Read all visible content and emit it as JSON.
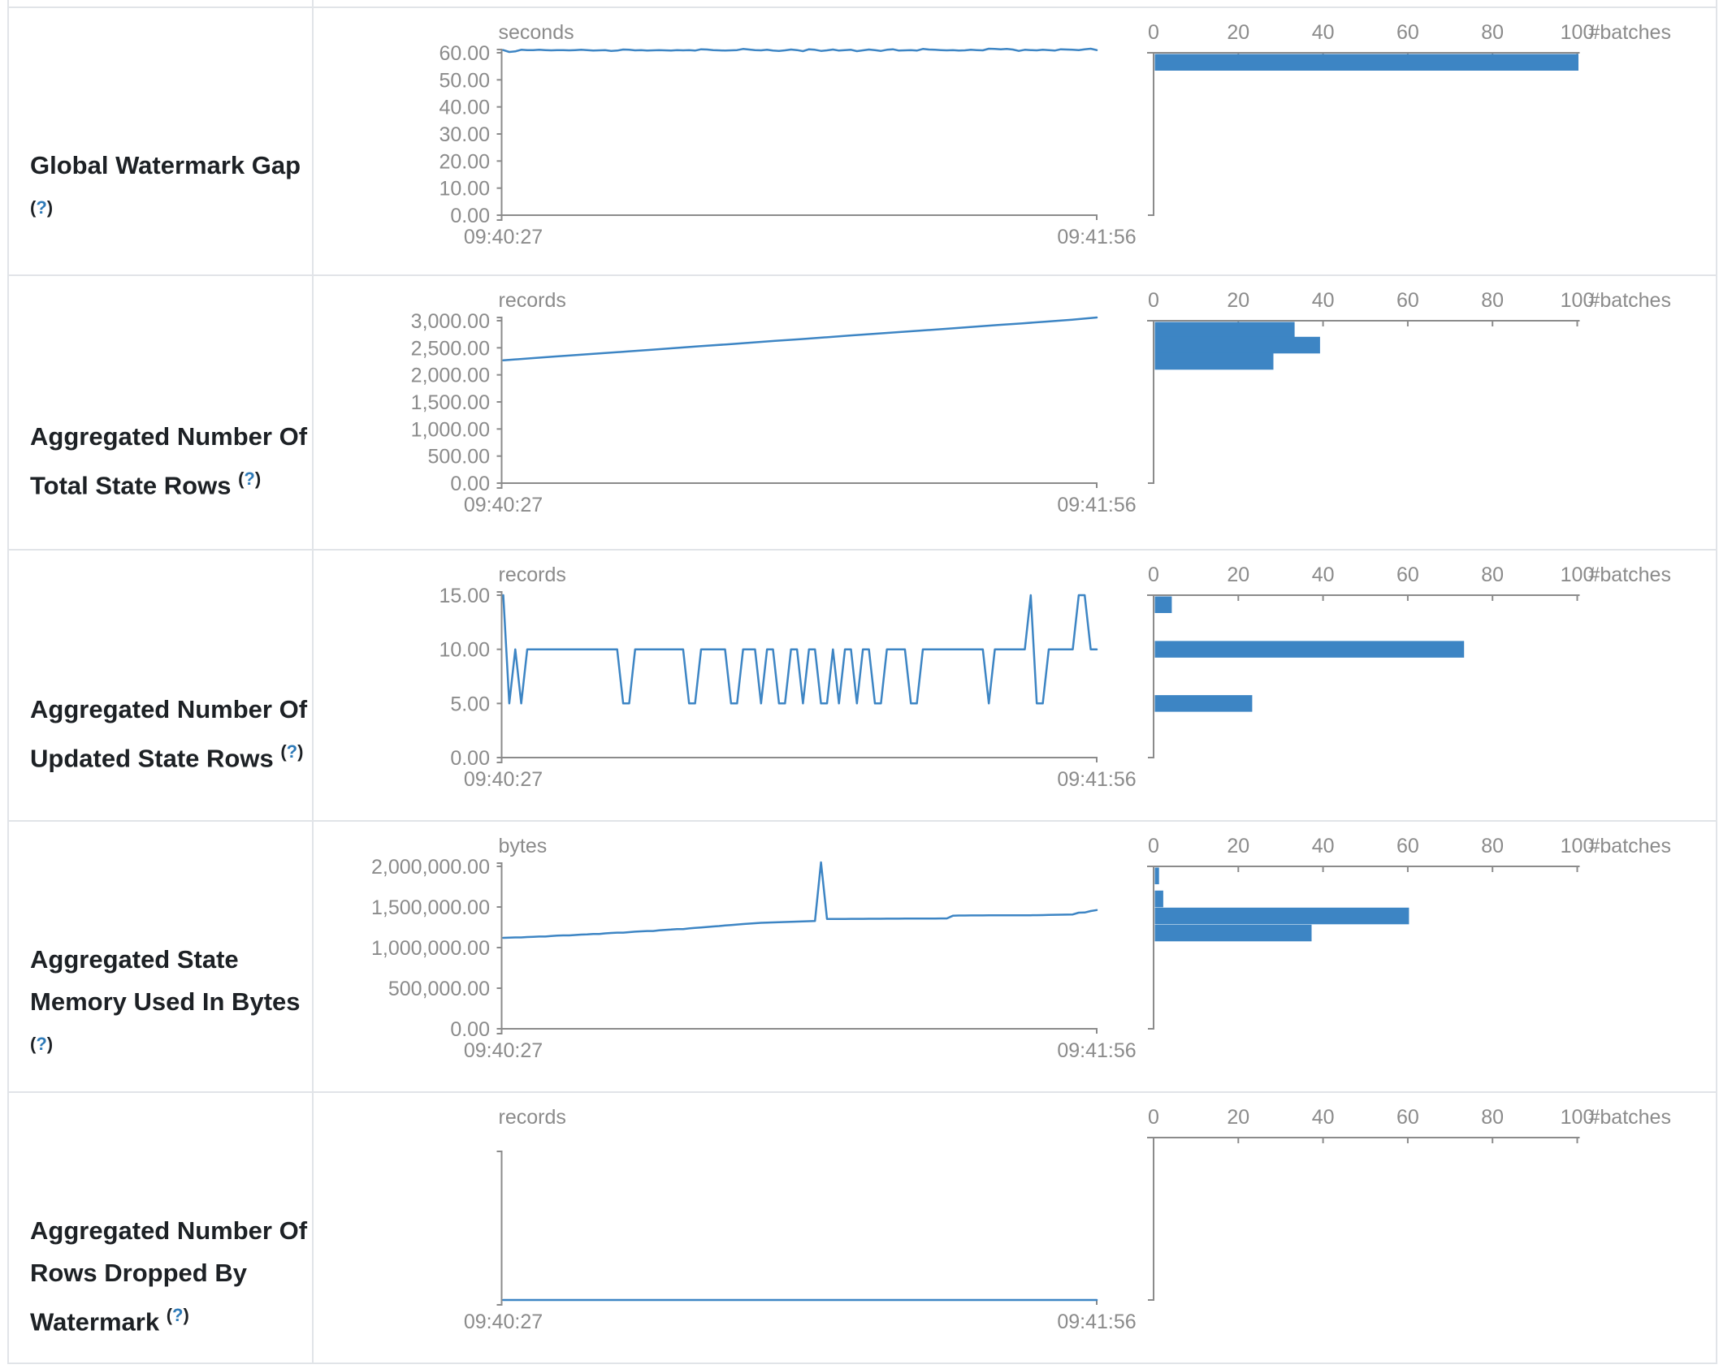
{
  "page": {
    "accent_blue": "#3d85c4",
    "axis_gray": "#8b8b8b",
    "border_color": "#e1e4e8",
    "label_color": "#1d2125",
    "help_color": "#2e7ab8",
    "help_label": "(?)"
  },
  "time_axis": {
    "start": "09:40:27",
    "end": "09:41:56"
  },
  "batch_axis": {
    "tick_labels": [
      "0",
      "20",
      "40",
      "60",
      "80",
      "100"
    ],
    "tick_values": [
      0,
      20,
      40,
      60,
      80,
      100
    ],
    "max": 100,
    "unit": "#batches"
  },
  "rows": [
    {
      "id": "global-watermark-gap",
      "label_lines": [
        "Global Watermark Gap",
        "(?)"
      ],
      "unit": "seconds",
      "y_max": 60,
      "y_ticks": [
        {
          "label": "60.00",
          "v": 60
        },
        {
          "label": "50.00",
          "v": 50
        },
        {
          "label": "40.00",
          "v": 40
        },
        {
          "label": "30.00",
          "v": 30
        },
        {
          "label": "20.00",
          "v": 20
        },
        {
          "label": "10.00",
          "v": 10
        },
        {
          "label": "0.00",
          "v": 0
        }
      ],
      "line": [
        61,
        60.3,
        60.5,
        61.1,
        61,
        61,
        61.1,
        61,
        60.9,
        61,
        61,
        60.9,
        61,
        61.1,
        61,
        60.8,
        60.9,
        61,
        60.7,
        60.8,
        61.2,
        61.1,
        60.9,
        61,
        60.8,
        60.9,
        61,
        60.9,
        60.8,
        61,
        60.9,
        61,
        60.8,
        61.3,
        61.2,
        61,
        60.9,
        60.8,
        60.9,
        61,
        61.4,
        61.2,
        61,
        60.9,
        61.1,
        60.8,
        60.7,
        60.9,
        61.2,
        61,
        60.6,
        61.3,
        61.1,
        60.7,
        60.9,
        61.2,
        60.8,
        61,
        61.1,
        60.6,
        60.9,
        61.2,
        61,
        60.7,
        61.1,
        61.3,
        60.8,
        60.9,
        61,
        60.8,
        61.4,
        61.2,
        61.1,
        61,
        60.9,
        61,
        60.8,
        60.9,
        61.1,
        61,
        60.9,
        61.5,
        61.4,
        61.3,
        61.4,
        61.2,
        60.7,
        61.1,
        61,
        60.9,
        61.1,
        61,
        60.8,
        61.3,
        61.2,
        61.1,
        61,
        61.3,
        61.5,
        61
      ],
      "hist": [
        {
          "v": 60,
          "n": 100
        }
      ]
    },
    {
      "id": "aggregated-total-state-rows",
      "label_lines": [
        "Aggregated Number Of",
        "Total State Rows (?)"
      ],
      "unit": "records",
      "y_max": 3000,
      "y_ticks": [
        {
          "label": "3,000.00",
          "v": 3000
        },
        {
          "label": "2,500.00",
          "v": 2500
        },
        {
          "label": "2,000.00",
          "v": 2000
        },
        {
          "label": "1,500.00",
          "v": 1500
        },
        {
          "label": "1,000.00",
          "v": 1000
        },
        {
          "label": "500.00",
          "v": 500
        },
        {
          "label": "0.00",
          "v": 0
        }
      ],
      "line": [
        2270,
        2302,
        2335,
        2368,
        2400,
        2432,
        2465,
        2498,
        2530,
        2562,
        2595,
        2628,
        2660,
        2692,
        2725,
        2758,
        2790,
        2822,
        2855,
        2888,
        2920,
        2952,
        2985,
        3020,
        3060
      ],
      "hist": [
        {
          "v": 2850,
          "n": 33
        },
        {
          "v": 2550,
          "n": 39
        },
        {
          "v": 2250,
          "n": 28
        }
      ]
    },
    {
      "id": "aggregated-updated-state-rows",
      "label_lines": [
        "Aggregated Number Of",
        "Updated State Rows (?)"
      ],
      "unit": "records",
      "y_max": 15,
      "y_ticks": [
        {
          "label": "15.00",
          "v": 15
        },
        {
          "label": "10.00",
          "v": 10
        },
        {
          "label": "5.00",
          "v": 5
        },
        {
          "label": "0.00",
          "v": 0
        }
      ],
      "line": [
        15,
        5,
        10,
        5,
        10,
        10,
        10,
        10,
        10,
        10,
        10,
        10,
        10,
        10,
        10,
        10,
        10,
        10,
        10,
        10,
        5,
        5,
        10,
        10,
        10,
        10,
        10,
        10,
        10,
        10,
        10,
        5,
        5,
        10,
        10,
        10,
        10,
        10,
        5,
        5,
        10,
        10,
        10,
        5,
        10,
        10,
        5,
        5,
        10,
        10,
        5,
        10,
        10,
        5,
        5,
        10,
        5,
        10,
        10,
        5,
        10,
        10,
        5,
        5,
        10,
        10,
        10,
        10,
        5,
        5,
        10,
        10,
        10,
        10,
        10,
        10,
        10,
        10,
        10,
        10,
        10,
        5,
        10,
        10,
        10,
        10,
        10,
        10,
        15,
        5,
        5,
        10,
        10,
        10,
        10,
        10,
        15,
        15,
        10,
        10
      ],
      "hist": [
        {
          "v": 15,
          "n": 4
        },
        {
          "v": 10,
          "n": 73
        },
        {
          "v": 5,
          "n": 23
        }
      ]
    },
    {
      "id": "aggregated-state-memory-used",
      "label_lines": [
        "Aggregated State",
        "Memory Used In Bytes",
        "(?)"
      ],
      "unit": "bytes",
      "y_max": 2000000,
      "y_ticks": [
        {
          "label": "2,000,000.00",
          "v": 2000000
        },
        {
          "label": "1,500,000.00",
          "v": 1500000
        },
        {
          "label": "1,000,000.00",
          "v": 1000000
        },
        {
          "label": "500,000.00",
          "v": 500000
        },
        {
          "label": "0.00",
          "v": 0
        }
      ],
      "line": [
        1120000,
        1122000,
        1125000,
        1125000,
        1130000,
        1133000,
        1136000,
        1136000,
        1142000,
        1147000,
        1150000,
        1150000,
        1155000,
        1160000,
        1163000,
        1168000,
        1168000,
        1175000,
        1180000,
        1184000,
        1184000,
        1190000,
        1196000,
        1200000,
        1204000,
        1204000,
        1212000,
        1218000,
        1222000,
        1228000,
        1228000,
        1236000,
        1242000,
        1248000,
        1254000,
        1260000,
        1265000,
        1272000,
        1278000,
        1284000,
        1290000,
        1295000,
        1300000,
        1305000,
        1308000,
        1310000,
        1312000,
        1315000,
        1318000,
        1320000,
        1322000,
        1325000,
        1328000,
        2050000,
        1352000,
        1352000,
        1353000,
        1353000,
        1354000,
        1354000,
        1354000,
        1355000,
        1355000,
        1355000,
        1356000,
        1356000,
        1356000,
        1357000,
        1357000,
        1357000,
        1358000,
        1358000,
        1358000,
        1359000,
        1359000,
        1392000,
        1395000,
        1395000,
        1396000,
        1396000,
        1396000,
        1397000,
        1397000,
        1397000,
        1397000,
        1398000,
        1398000,
        1398000,
        1398000,
        1399000,
        1400000,
        1402000,
        1404000,
        1405000,
        1406000,
        1408000,
        1430000,
        1432000,
        1450000,
        1462000
      ],
      "hist": [
        {
          "v": 2050000,
          "n": 1
        },
        {
          "v": 1600000,
          "n": 2
        },
        {
          "v": 1390000,
          "n": 60
        },
        {
          "v": 1180000,
          "n": 37
        }
      ]
    },
    {
      "id": "aggregated-rows-dropped-by-watermark",
      "label_lines": [
        "Aggregated Number Of",
        "Rows Dropped By",
        "Watermark (?)"
      ],
      "unit": "records",
      "y_max": 1,
      "y_ticks": [],
      "no_y_ticks": true,
      "line": [
        0,
        0
      ],
      "hist": []
    }
  ]
}
